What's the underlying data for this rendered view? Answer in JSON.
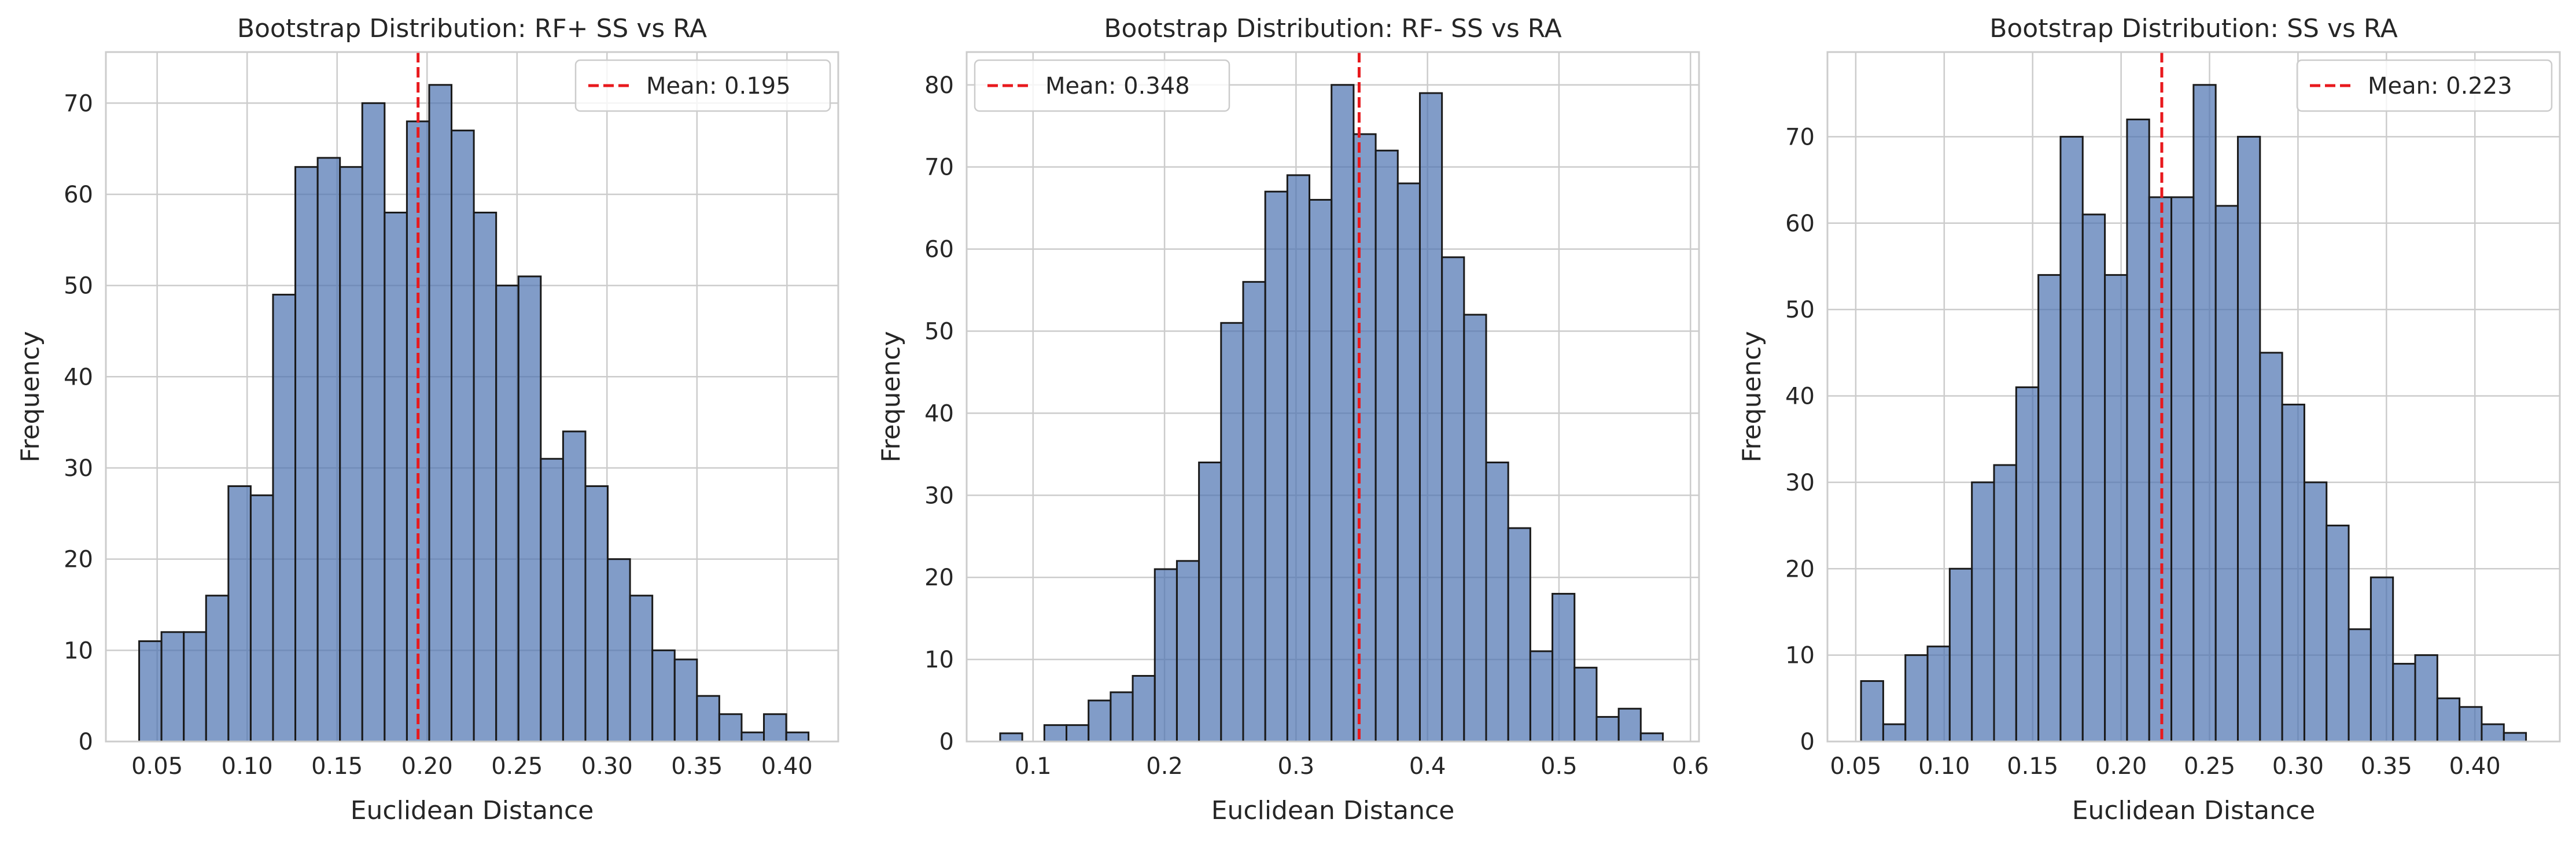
{
  "colors": {
    "bar_fill": "#4c72b0",
    "bar_edge": "#1a1a1a",
    "mean_line": "#e8191d",
    "grid": "#cccccc",
    "background": "#ffffff"
  },
  "chart_data": [
    {
      "type": "histogram",
      "title": "Bootstrap Distribution: RF+ SS vs RA",
      "xlabel": "Euclidean Distance",
      "ylabel": "Frequency",
      "bin_start": 0.04,
      "bin_width": 0.0124,
      "counts": [
        11,
        12,
        12,
        16,
        28,
        27,
        49,
        63,
        64,
        63,
        70,
        58,
        68,
        72,
        67,
        58,
        50,
        51,
        31,
        34,
        28,
        20,
        16,
        10,
        9,
        5,
        3,
        1,
        3,
        1
      ],
      "mean": 0.195,
      "legend": "Mean: 0.195",
      "legend_position": "top-right",
      "xlim": [
        0.0215,
        0.4285
      ],
      "ylim": [
        0,
        75.6
      ],
      "xticks": [
        0.05,
        0.1,
        0.15,
        0.2,
        0.25,
        0.3,
        0.35,
        0.4
      ],
      "xtick_labels": [
        "0.05",
        "0.10",
        "0.15",
        "0.20",
        "0.25",
        "0.30",
        "0.35",
        "0.40"
      ],
      "yticks": [
        0,
        10,
        20,
        30,
        40,
        50,
        60,
        70
      ],
      "ytick_labels": [
        "0",
        "10",
        "20",
        "30",
        "40",
        "50",
        "60",
        "70"
      ],
      "grid": true
    },
    {
      "type": "histogram",
      "title": "Bootstrap Distribution: RF- SS vs RA",
      "xlabel": "Euclidean Distance",
      "ylabel": "Frequency",
      "bin_start": 0.075,
      "bin_width": 0.0168,
      "counts": [
        1,
        0,
        2,
        2,
        5,
        6,
        8,
        21,
        22,
        34,
        51,
        56,
        67,
        69,
        66,
        80,
        74,
        72,
        68,
        79,
        59,
        52,
        34,
        26,
        11,
        18,
        9,
        3,
        4,
        1
      ],
      "mean": 0.348,
      "legend": "Mean: 0.348",
      "legend_position": "top-left",
      "xlim": [
        0.0495,
        0.6065
      ],
      "ylim": [
        0,
        84
      ],
      "xticks": [
        0.1,
        0.2,
        0.3,
        0.4,
        0.5,
        0.6
      ],
      "xtick_labels": [
        "0.1",
        "0.2",
        "0.3",
        "0.4",
        "0.5",
        "0.6"
      ],
      "yticks": [
        0,
        10,
        20,
        30,
        40,
        50,
        60,
        70,
        80
      ],
      "ytick_labels": [
        "0",
        "10",
        "20",
        "30",
        "40",
        "50",
        "60",
        "70",
        "80"
      ],
      "grid": true
    },
    {
      "type": "histogram",
      "title": "Bootstrap Distribution: SS vs RA",
      "xlabel": "Euclidean Distance",
      "ylabel": "Frequency",
      "bin_start": 0.053,
      "bin_width": 0.01253,
      "counts": [
        7,
        2,
        10,
        11,
        20,
        30,
        32,
        41,
        54,
        70,
        61,
        54,
        72,
        63,
        63,
        76,
        62,
        70,
        45,
        39,
        30,
        25,
        13,
        19,
        9,
        10,
        5,
        4,
        2,
        1
      ],
      "mean": 0.223,
      "legend": "Mean: 0.223",
      "legend_position": "top-right",
      "xlim": [
        0.034,
        0.448
      ],
      "ylim": [
        0,
        79.8
      ],
      "xticks": [
        0.05,
        0.1,
        0.15,
        0.2,
        0.25,
        0.3,
        0.35,
        0.4
      ],
      "xtick_labels": [
        "0.05",
        "0.10",
        "0.15",
        "0.20",
        "0.25",
        "0.30",
        "0.35",
        "0.40"
      ],
      "yticks": [
        0,
        10,
        20,
        30,
        40,
        50,
        60,
        70
      ],
      "ytick_labels": [
        "0",
        "10",
        "20",
        "30",
        "40",
        "50",
        "60",
        "70"
      ],
      "grid": true
    }
  ]
}
